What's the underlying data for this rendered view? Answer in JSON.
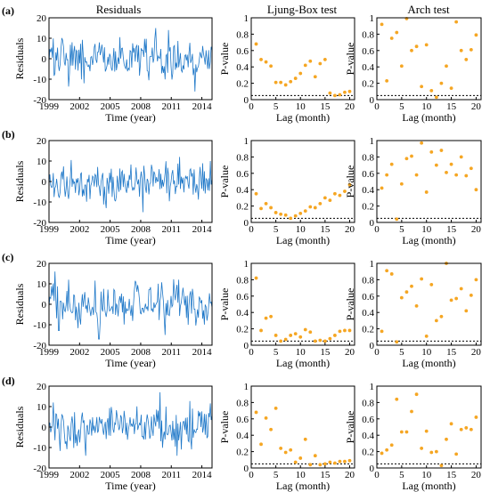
{
  "column_titles": [
    "Residuals",
    "Ljung-Box test",
    "Arch test"
  ],
  "row_labels": [
    "(a)",
    "(b)",
    "(c)",
    "(d)"
  ],
  "colors": {
    "residual_line": "#1f78c8",
    "pvalue_marker": "#f5a623",
    "threshold_line": "#000000"
  },
  "chart_data": [
    {
      "type": "line",
      "row": "(a)",
      "panel": "residuals",
      "xlabel": "Time (year)",
      "ylabel": "Residuals",
      "xlim": [
        1999,
        2015
      ],
      "ylim": [
        -20,
        20
      ],
      "xticks": [
        1999,
        2002,
        2005,
        2008,
        2011,
        2014
      ],
      "yticks": [
        -20,
        -10,
        0,
        10,
        20
      ],
      "amplitude": 5,
      "spikes": [
        [
          2009.5,
          15
        ],
        [
          2010.7,
          14
        ],
        [
          2013.3,
          -16
        ],
        [
          2002.4,
          -12
        ]
      ]
    },
    {
      "type": "scatter",
      "row": "(a)",
      "panel": "ljung-box",
      "xlabel": "Lag (month)",
      "ylabel": "P-value",
      "xlim": [
        0,
        21
      ],
      "ylim": [
        0,
        1
      ],
      "xticks": [
        0,
        5,
        10,
        15,
        20
      ],
      "yticks": [
        0,
        0.2,
        0.4,
        0.6,
        0.8,
        1.0
      ],
      "threshold": 0.05,
      "x": [
        1,
        2,
        3,
        4,
        5,
        6,
        7,
        8,
        9,
        10,
        11,
        12,
        13,
        14,
        15,
        16,
        17,
        18,
        19,
        20
      ],
      "y": [
        0.68,
        0.49,
        0.46,
        0.41,
        0.21,
        0.21,
        0.18,
        0.22,
        0.26,
        0.32,
        0.42,
        0.47,
        0.28,
        0.44,
        0.49,
        0.08,
        0.05,
        0.06,
        0.09,
        0.1
      ]
    },
    {
      "type": "scatter",
      "row": "(a)",
      "panel": "arch",
      "xlabel": "Lag (month)",
      "ylabel": "P-value",
      "xlim": [
        0,
        21
      ],
      "ylim": [
        0,
        1
      ],
      "xticks": [
        0,
        5,
        10,
        15,
        20
      ],
      "yticks": [
        0,
        0.2,
        0.4,
        0.6,
        0.8,
        1.0
      ],
      "threshold": 0.05,
      "x": [
        1,
        2,
        3,
        4,
        5,
        6,
        7,
        8,
        9,
        10,
        11,
        12,
        13,
        14,
        15,
        16,
        17,
        18,
        19,
        20
      ],
      "y": [
        0.92,
        0.23,
        0.75,
        0.82,
        0.41,
        0.99,
        0.6,
        0.65,
        0.16,
        0.67,
        0.11,
        0.03,
        0.2,
        0.41,
        0.14,
        0.95,
        0.6,
        0.49,
        0.61,
        0.79
      ]
    },
    {
      "type": "line",
      "row": "(b)",
      "panel": "residuals",
      "xlabel": "Time (year)",
      "ylabel": "Residuals",
      "xlim": [
        1999,
        2015
      ],
      "ylim": [
        -20,
        20
      ],
      "xticks": [
        1999,
        2002,
        2005,
        2008,
        2011,
        2014
      ],
      "yticks": [
        -20,
        -10,
        0,
        10,
        20
      ],
      "amplitude": 4.5,
      "spikes": [
        [
          2004.6,
          -13
        ],
        [
          2008.2,
          -15
        ],
        [
          2011.8,
          12
        ],
        [
          2014.8,
          10
        ]
      ]
    },
    {
      "type": "scatter",
      "row": "(b)",
      "panel": "ljung-box",
      "xlabel": "Lag (month)",
      "ylabel": "P-value",
      "xlim": [
        0,
        21
      ],
      "ylim": [
        0,
        1
      ],
      "xticks": [
        0,
        5,
        10,
        15,
        20
      ],
      "yticks": [
        0,
        0.2,
        0.4,
        0.6,
        0.8,
        1.0
      ],
      "threshold": 0.05,
      "x": [
        1,
        2,
        3,
        4,
        5,
        6,
        7,
        8,
        9,
        10,
        11,
        12,
        13,
        14,
        15,
        16,
        17,
        18,
        19,
        20
      ],
      "y": [
        0.35,
        0.17,
        0.23,
        0.18,
        0.12,
        0.1,
        0.09,
        0.05,
        0.08,
        0.11,
        0.14,
        0.19,
        0.18,
        0.23,
        0.3,
        0.27,
        0.35,
        0.33,
        0.38,
        0.46
      ]
    },
    {
      "type": "scatter",
      "row": "(b)",
      "panel": "arch",
      "xlabel": "Lag (month)",
      "ylabel": "P-value",
      "xlim": [
        0,
        21
      ],
      "ylim": [
        0,
        1
      ],
      "xticks": [
        0,
        5,
        10,
        15,
        20
      ],
      "yticks": [
        0,
        0.2,
        0.4,
        0.6,
        0.8,
        1.0
      ],
      "threshold": 0.05,
      "x": [
        1,
        2,
        3,
        4,
        5,
        6,
        7,
        8,
        9,
        10,
        11,
        12,
        13,
        14,
        15,
        16,
        17,
        18,
        19,
        20
      ],
      "y": [
        0.42,
        0.58,
        0.71,
        0.04,
        0.47,
        0.78,
        0.81,
        0.58,
        0.97,
        0.37,
        0.86,
        0.7,
        0.88,
        0.61,
        0.71,
        0.58,
        0.8,
        0.57,
        0.66,
        0.4
      ]
    },
    {
      "type": "line",
      "row": "(c)",
      "panel": "residuals",
      "xlabel": "Time (year)",
      "ylabel": "Residuals",
      "xlim": [
        1999,
        2015
      ],
      "ylim": [
        -20,
        20
      ],
      "xticks": [
        1999,
        2002,
        2005,
        2008,
        2011,
        2014
      ],
      "yticks": [
        -20,
        -10,
        0,
        10,
        20
      ],
      "amplitude": 5.5,
      "spikes": [
        [
          1999.6,
          16
        ],
        [
          2003.9,
          -17
        ],
        [
          2010.4,
          -15
        ],
        [
          2000.9,
          12
        ]
      ]
    },
    {
      "type": "scatter",
      "row": "(c)",
      "panel": "ljung-box",
      "xlabel": "Lag (month)",
      "ylabel": "P-value",
      "xlim": [
        0,
        21
      ],
      "ylim": [
        0,
        1
      ],
      "xticks": [
        0,
        5,
        10,
        15,
        20
      ],
      "yticks": [
        0,
        0.2,
        0.4,
        0.6,
        0.8,
        1.0
      ],
      "threshold": 0.05,
      "x": [
        1,
        2,
        3,
        4,
        5,
        6,
        7,
        8,
        9,
        10,
        11,
        12,
        13,
        14,
        15,
        16,
        17,
        18,
        19,
        20
      ],
      "y": [
        0.82,
        0.18,
        0.33,
        0.35,
        0.12,
        0.05,
        0.07,
        0.12,
        0.14,
        0.1,
        0.19,
        0.16,
        0.05,
        0.06,
        0.05,
        0.08,
        0.12,
        0.17,
        0.18,
        0.18
      ]
    },
    {
      "type": "scatter",
      "row": "(c)",
      "panel": "arch",
      "xlabel": "Lag (month)",
      "ylabel": "P-value",
      "xlim": [
        0,
        21
      ],
      "ylim": [
        0,
        1
      ],
      "xticks": [
        0,
        5,
        10,
        15,
        20
      ],
      "yticks": [
        0,
        0.2,
        0.4,
        0.6,
        0.8,
        1.0
      ],
      "threshold": 0.05,
      "x": [
        1,
        2,
        3,
        4,
        5,
        6,
        7,
        8,
        9,
        10,
        11,
        12,
        13,
        14,
        15,
        16,
        17,
        18,
        19,
        20
      ],
      "y": [
        0.17,
        0.91,
        0.87,
        0.04,
        0.58,
        0.65,
        0.72,
        0.48,
        0.81,
        0.11,
        0.74,
        0.3,
        0.35,
        1.0,
        0.55,
        0.57,
        0.69,
        0.42,
        0.61,
        0.8
      ]
    },
    {
      "type": "line",
      "row": "(d)",
      "panel": "residuals",
      "xlabel": "Time (year)",
      "ylabel": "Residuals",
      "xlim": [
        1999,
        2015
      ],
      "ylim": [
        -20,
        20
      ],
      "xticks": [
        1999,
        2002,
        2005,
        2008,
        2011,
        2014
      ],
      "yticks": [
        -20,
        -10,
        0,
        10,
        20
      ],
      "amplitude": 5,
      "spikes": [
        [
          2009.9,
          17
        ],
        [
          2002.6,
          -14
        ],
        [
          2011.6,
          -14
        ],
        [
          1999.4,
          12
        ]
      ]
    },
    {
      "type": "scatter",
      "row": "(d)",
      "panel": "ljung-box",
      "xlabel": "Lag (month)",
      "ylabel": "P-value",
      "xlim": [
        0,
        21
      ],
      "ylim": [
        0,
        1
      ],
      "xticks": [
        0,
        5,
        10,
        15,
        20
      ],
      "yticks": [
        0,
        0.2,
        0.4,
        0.6,
        0.8,
        1.0
      ],
      "threshold": 0.05,
      "x": [
        1,
        2,
        3,
        4,
        5,
        6,
        7,
        8,
        9,
        10,
        11,
        12,
        13,
        14,
        15,
        16,
        17,
        18,
        19,
        20
      ],
      "y": [
        0.68,
        0.29,
        0.61,
        0.47,
        0.73,
        0.24,
        0.19,
        0.22,
        0.07,
        0.12,
        0.35,
        0.04,
        0.15,
        0.04,
        0.05,
        0.07,
        0.06,
        0.08,
        0.08,
        0.09
      ]
    },
    {
      "type": "scatter",
      "row": "(d)",
      "panel": "arch",
      "xlabel": "Lag (month)",
      "ylabel": "P-value",
      "xlim": [
        0,
        21
      ],
      "ylim": [
        0,
        1
      ],
      "xticks": [
        0,
        5,
        10,
        15,
        20
      ],
      "yticks": [
        0,
        0.2,
        0.4,
        0.6,
        0.8,
        1.0
      ],
      "threshold": 0.05,
      "x": [
        1,
        2,
        3,
        4,
        5,
        6,
        7,
        8,
        9,
        10,
        11,
        12,
        13,
        14,
        15,
        16,
        17,
        18,
        19,
        20
      ],
      "y": [
        0.18,
        0.22,
        0.28,
        0.84,
        0.44,
        0.44,
        0.69,
        0.9,
        0.24,
        0.45,
        0.19,
        0.2,
        0.03,
        0.35,
        0.54,
        0.17,
        0.47,
        0.49,
        0.47,
        0.62
      ]
    }
  ]
}
